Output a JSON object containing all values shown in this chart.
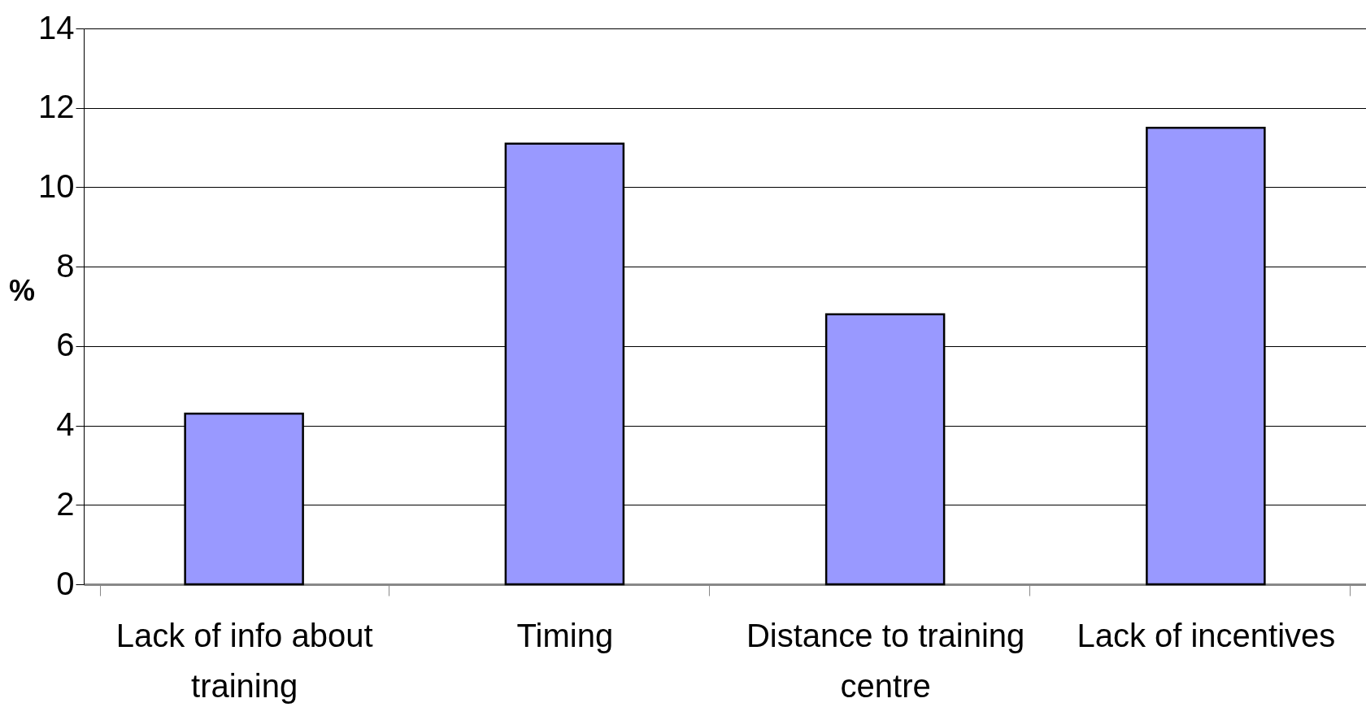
{
  "chart_data": {
    "type": "bar",
    "ylabel": "%",
    "categories": [
      "Lack of info about training",
      "Timing",
      "Distance to training centre",
      "Lack of incentives"
    ],
    "values": [
      4.3,
      11.1,
      6.8,
      11.5
    ],
    "color": "#9999ff",
    "ylim": [
      0,
      14
    ],
    "yticks": [
      0,
      2,
      4,
      6,
      8,
      10,
      12,
      14
    ],
    "grid": "y"
  }
}
